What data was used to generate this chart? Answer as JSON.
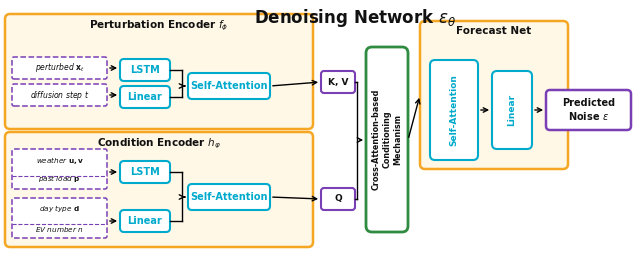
{
  "title": "Denoising Network $\\epsilon_{\\theta}$",
  "title_fontsize": 12,
  "bg_color": "#FFF8E7",
  "orange_border": "#F5A623",
  "purple_border": "#7B3FB5",
  "green_border": "#2E8B40",
  "cyan_color": "#00AACC",
  "black_text": "#111111",
  "perturb_encoder_title": "Perturbation Encoder $f_{\\phi}$",
  "condition_encoder_title": "Condition Encoder $h_{\\varphi}$",
  "forecast_net_title": "Forecast Net",
  "cross_attn_line1": "Cross-Attention-based",
  "cross_attn_line2": "Conditioning",
  "cross_attn_line3": "Mechanism",
  "predicted_noise_text": "Predicted\nNoise $\\epsilon$",
  "perturbed_label": "perturbed $\\mathbf{x}_t$",
  "diffusion_label": "diffusion step $t$",
  "weather_label": "weather $\\mathbf{u,v}$",
  "past_load_label": "past load $\\mathbf{p}$",
  "day_type_label": "day type $\\mathbf{d}$",
  "ev_number_label": "EV number $n$",
  "kv_label": "K, V",
  "q_label": "Q"
}
